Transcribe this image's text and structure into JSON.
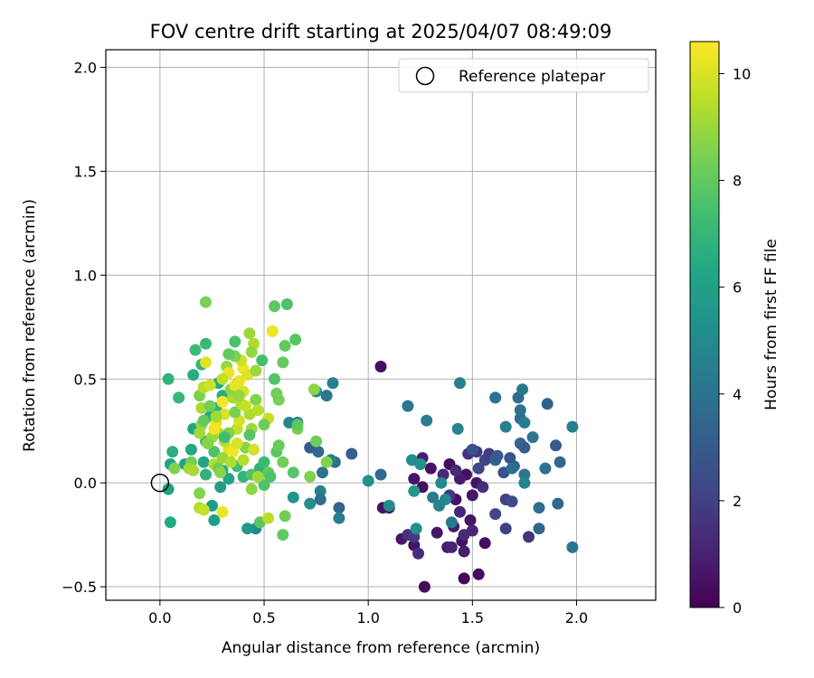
{
  "chart_data": {
    "type": "scatter",
    "title": "FOV centre drift starting at 2025/04/07 08:49:09",
    "xlabel": "Angular distance from reference (arcmin)",
    "ylabel": "Rotation from reference (arcmin)",
    "xlim": [
      -0.26,
      2.38
    ],
    "ylim": [
      -0.565,
      2.085
    ],
    "xticks": [
      0.0,
      0.5,
      1.0,
      1.5,
      2.0
    ],
    "xtick_labels": [
      "0.0",
      "0.5",
      "1.0",
      "1.5",
      "2.0"
    ],
    "yticks": [
      -0.5,
      0.0,
      0.5,
      1.0,
      1.5,
      2.0
    ],
    "ytick_labels": [
      "−0.5",
      "0.0",
      "0.5",
      "1.0",
      "1.5",
      "2.0"
    ],
    "grid": true,
    "legend": {
      "placement": "top-right",
      "entries": [
        "Reference platepar"
      ]
    },
    "reference_point": {
      "x": 0.0,
      "y": 0.0
    },
    "colorbar": {
      "label": "Hours from first FF file",
      "range": [
        0,
        10.6
      ],
      "ticks": [
        0,
        2,
        4,
        6,
        8,
        10
      ],
      "tick_labels": [
        "0",
        "2",
        "4",
        "6",
        "8",
        "10"
      ],
      "colormap": "viridis"
    },
    "points": [
      [
        1.06,
        0.56,
        0.4
      ],
      [
        1.16,
        -0.27,
        0.6
      ],
      [
        1.22,
        -0.3,
        0.5
      ],
      [
        1.27,
        -0.5,
        0.3
      ],
      [
        1.33,
        -0.24,
        0.7
      ],
      [
        1.38,
        -0.31,
        0.8
      ],
      [
        1.45,
        -0.28,
        0.5
      ],
      [
        1.46,
        -0.46,
        0.2
      ],
      [
        1.53,
        -0.44,
        0.3
      ],
      [
        1.56,
        -0.29,
        0.4
      ],
      [
        1.49,
        -0.18,
        0.6
      ],
      [
        1.46,
        -0.33,
        0.9
      ],
      [
        1.42,
        -0.08,
        0.5
      ],
      [
        1.39,
        0.09,
        0.3
      ],
      [
        1.47,
        0.04,
        0.4
      ],
      [
        1.52,
        0.0,
        0.6
      ],
      [
        1.5,
        -0.06,
        0.7
      ],
      [
        1.44,
        0.02,
        0.8
      ],
      [
        1.3,
        0.07,
        0.5
      ],
      [
        1.26,
        -0.02,
        0.4
      ],
      [
        1.22,
        0.02,
        0.6
      ],
      [
        1.26,
        0.12,
        0.9
      ],
      [
        1.1,
        -0.12,
        0.7
      ],
      [
        1.07,
        -0.12,
        0.5
      ],
      [
        1.41,
        -0.21,
        0.8
      ],
      [
        1.4,
        -0.31,
        1.0
      ],
      [
        1.36,
        0.04,
        1.2
      ],
      [
        1.42,
        0.06,
        1.3
      ],
      [
        1.48,
        0.14,
        1.5
      ],
      [
        1.44,
        -0.14,
        1.2
      ],
      [
        1.39,
        -0.06,
        1.8
      ],
      [
        1.55,
        -0.02,
        1.4
      ],
      [
        1.61,
        -0.15,
        2.2
      ],
      [
        1.66,
        -0.08,
        2.0
      ],
      [
        1.77,
        -0.26,
        1.6
      ],
      [
        1.66,
        -0.22,
        2.0
      ],
      [
        1.5,
        -0.23,
        1.1
      ],
      [
        1.46,
        -0.25,
        1.3
      ],
      [
        1.19,
        -0.25,
        1.6
      ],
      [
        1.22,
        -0.26,
        1.8
      ],
      [
        1.24,
        -0.34,
        1.4
      ],
      [
        1.52,
        0.15,
        1.7
      ],
      [
        1.56,
        0.11,
        2.1
      ],
      [
        1.5,
        0.16,
        2.6
      ],
      [
        1.58,
        0.14,
        1.9
      ],
      [
        1.53,
        0.07,
        2.3
      ],
      [
        1.61,
        0.11,
        3.2
      ],
      [
        1.65,
        0.05,
        2.6
      ],
      [
        1.7,
        0.08,
        3.4
      ],
      [
        1.68,
        0.12,
        2.8
      ],
      [
        1.69,
        0.07,
        3.8
      ],
      [
        1.73,
        0.19,
        3.5
      ],
      [
        1.75,
        0.17,
        3.1
      ],
      [
        1.79,
        0.22,
        4.2
      ],
      [
        1.73,
        0.31,
        3.6
      ],
      [
        1.75,
        0.29,
        4.4
      ],
      [
        1.73,
        0.35,
        3.9
      ],
      [
        1.66,
        0.27,
        4.6
      ],
      [
        1.61,
        0.41,
        4.0
      ],
      [
        1.72,
        0.41,
        3.7
      ],
      [
        1.74,
        0.45,
        4.3
      ],
      [
        1.86,
        0.38,
        3.3
      ],
      [
        1.9,
        0.18,
        3.0
      ],
      [
        1.92,
        0.1,
        3.5
      ],
      [
        1.85,
        0.07,
        4.0
      ],
      [
        1.98,
        0.27,
        4.5
      ],
      [
        1.98,
        -0.31,
        4.1
      ],
      [
        1.91,
        -0.1,
        3.6
      ],
      [
        1.82,
        -0.12,
        3.9
      ],
      [
        1.82,
        -0.22,
        3.4
      ],
      [
        1.75,
        0.04,
        4.2
      ],
      [
        1.75,
        0.0,
        4.7
      ],
      [
        1.69,
        -0.09,
        2.4
      ],
      [
        1.62,
        0.13,
        3.0
      ],
      [
        1.44,
        0.48,
        4.6
      ],
      [
        1.43,
        0.26,
        4.8
      ],
      [
        1.28,
        0.3,
        4.5
      ],
      [
        1.19,
        0.37,
        4.2
      ],
      [
        1.31,
        -0.07,
        4.4
      ],
      [
        1.35,
        0.0,
        4.9
      ],
      [
        1.37,
        -0.08,
        5.0
      ],
      [
        1.34,
        -0.11,
        4.7
      ],
      [
        1.4,
        -0.19,
        4.3
      ],
      [
        1.23,
        -0.22,
        5.2
      ],
      [
        1.25,
        0.09,
        5.4
      ],
      [
        1.21,
        0.11,
        5.1
      ],
      [
        1.22,
        -0.04,
        5.6
      ],
      [
        1.1,
        -0.11,
        5.0
      ],
      [
        1.0,
        0.01,
        5.3
      ],
      [
        1.06,
        0.04,
        3.6
      ],
      [
        0.92,
        0.14,
        3.2
      ],
      [
        0.84,
        0.1,
        3.8
      ],
      [
        0.8,
        0.42,
        4.2
      ],
      [
        0.83,
        0.48,
        4.6
      ],
      [
        0.75,
        0.44,
        5.0
      ],
      [
        0.62,
        0.29,
        4.8
      ],
      [
        0.66,
        0.29,
        4.3
      ],
      [
        0.72,
        0.17,
        3.0
      ],
      [
        0.76,
        0.15,
        3.6
      ],
      [
        0.82,
        0.11,
        4.4
      ],
      [
        0.78,
        0.05,
        4.0
      ],
      [
        0.77,
        -0.04,
        4.7
      ],
      [
        0.77,
        -0.08,
        3.9
      ],
      [
        0.86,
        -0.12,
        3.4
      ],
      [
        0.86,
        -0.17,
        4.5
      ],
      [
        0.72,
        -0.1,
        5.2
      ],
      [
        0.64,
        -0.07,
        5.5
      ],
      [
        0.46,
        -0.22,
        5.0
      ],
      [
        0.42,
        -0.22,
        5.7
      ],
      [
        0.26,
        -0.18,
        6.0
      ],
      [
        0.25,
        -0.11,
        5.8
      ],
      [
        0.05,
        -0.19,
        6.4
      ],
      [
        0.04,
        -0.03,
        6.0
      ],
      [
        0.05,
        0.09,
        6.2
      ],
      [
        0.06,
        0.15,
        6.6
      ],
      [
        0.12,
        0.09,
        6.0
      ],
      [
        0.15,
        0.16,
        6.4
      ],
      [
        0.16,
        0.26,
        6.2
      ],
      [
        0.04,
        0.5,
        6.8
      ],
      [
        0.09,
        0.41,
        7.0
      ],
      [
        0.16,
        0.52,
        6.6
      ],
      [
        0.2,
        0.57,
        6.9
      ],
      [
        0.17,
        0.64,
        7.2
      ],
      [
        0.22,
        0.67,
        7.1
      ],
      [
        0.36,
        0.68,
        7.5
      ],
      [
        0.28,
        0.48,
        6.4
      ],
      [
        0.3,
        0.42,
        6.6
      ],
      [
        0.27,
        0.36,
        6.8
      ],
      [
        0.24,
        0.32,
        6.5
      ],
      [
        0.22,
        0.2,
        7.3
      ],
      [
        0.26,
        0.15,
        7.6
      ],
      [
        0.21,
        0.1,
        6.1
      ],
      [
        0.22,
        0.04,
        6.8
      ],
      [
        0.3,
        0.06,
        6.3
      ],
      [
        0.29,
        -0.02,
        5.9
      ],
      [
        0.33,
        0.02,
        6.2
      ],
      [
        0.37,
        0.08,
        7.4
      ],
      [
        0.4,
        0.03,
        6.9
      ],
      [
        0.44,
        0.04,
        7.7
      ],
      [
        0.48,
        0.07,
        6.7
      ],
      [
        0.5,
        0.1,
        7.2
      ],
      [
        0.52,
        0.05,
        8.0
      ],
      [
        0.53,
        0.03,
        7.6
      ],
      [
        0.56,
        0.15,
        7.9
      ],
      [
        0.57,
        0.18,
        8.1
      ],
      [
        0.59,
        0.1,
        8.3
      ],
      [
        0.64,
        0.05,
        7.8
      ],
      [
        0.66,
        0.26,
        8.4
      ],
      [
        0.66,
        0.28,
        7.9
      ],
      [
        0.72,
        0.03,
        8.5
      ],
      [
        0.75,
        0.2,
        8.2
      ],
      [
        0.8,
        0.1,
        8.6
      ],
      [
        0.74,
        0.45,
        8.8
      ],
      [
        0.65,
        0.69,
        7.8
      ],
      [
        0.59,
        0.58,
        8.1
      ],
      [
        0.6,
        0.66,
        8.0
      ],
      [
        0.55,
        0.5,
        7.7
      ],
      [
        0.57,
        0.4,
        8.4
      ],
      [
        0.55,
        0.85,
        7.9
      ],
      [
        0.61,
        0.86,
        7.6
      ],
      [
        0.22,
        0.87,
        8.5
      ],
      [
        0.43,
        0.72,
        9.0
      ],
      [
        0.45,
        0.67,
        9.3
      ],
      [
        0.44,
        0.63,
        8.9
      ],
      [
        0.49,
        0.59,
        7.4
      ],
      [
        0.54,
        0.73,
        10.3
      ],
      [
        0.48,
        -0.19,
        7.9
      ],
      [
        0.52,
        -0.17,
        9.5
      ],
      [
        0.6,
        -0.16,
        8.3
      ],
      [
        0.59,
        -0.25,
        8.0
      ],
      [
        0.44,
        -0.03,
        8.8
      ],
      [
        0.5,
        -0.01,
        7.6
      ],
      [
        0.47,
        0.03,
        9.1
      ],
      [
        0.4,
        0.11,
        9.4
      ],
      [
        0.41,
        0.17,
        8.7
      ],
      [
        0.44,
        0.26,
        9.0
      ],
      [
        0.43,
        0.33,
        9.2
      ],
      [
        0.46,
        0.4,
        8.6
      ],
      [
        0.47,
        0.35,
        9.5
      ],
      [
        0.52,
        0.31,
        9.7
      ],
      [
        0.5,
        0.28,
        8.2
      ],
      [
        0.45,
        0.16,
        9.9
      ],
      [
        0.4,
        0.44,
        10.0
      ],
      [
        0.38,
        0.49,
        10.2
      ],
      [
        0.4,
        0.55,
        10.4
      ],
      [
        0.42,
        0.52,
        10.1
      ],
      [
        0.39,
        0.59,
        9.8
      ],
      [
        0.36,
        0.61,
        8.5
      ],
      [
        0.32,
        0.56,
        8.9
      ],
      [
        0.33,
        0.53,
        10.3
      ],
      [
        0.3,
        0.5,
        9.6
      ],
      [
        0.3,
        0.39,
        10.5
      ],
      [
        0.31,
        0.33,
        10.0
      ],
      [
        0.27,
        0.29,
        10.2
      ],
      [
        0.28,
        0.24,
        9.4
      ],
      [
        0.25,
        0.22,
        9.0
      ],
      [
        0.23,
        0.19,
        8.7
      ],
      [
        0.2,
        0.28,
        8.8
      ],
      [
        0.2,
        0.36,
        9.2
      ],
      [
        0.19,
        0.42,
        8.5
      ],
      [
        0.21,
        0.46,
        9.5
      ],
      [
        0.24,
        0.47,
        9.8
      ],
      [
        0.22,
        0.58,
        10.1
      ],
      [
        0.21,
        0.3,
        8.0
      ],
      [
        0.19,
        0.24,
        9.1
      ],
      [
        0.15,
        0.1,
        8.3
      ],
      [
        0.14,
        0.07,
        9.0
      ],
      [
        0.19,
        -0.05,
        8.6
      ],
      [
        0.19,
        -0.12,
        9.4
      ],
      [
        0.21,
        -0.13,
        9.7
      ],
      [
        0.3,
        -0.14,
        10.3
      ],
      [
        0.26,
        0.09,
        9.3
      ],
      [
        0.28,
        0.07,
        8.2
      ],
      [
        0.33,
        0.16,
        10.1
      ],
      [
        0.35,
        0.15,
        10.4
      ],
      [
        0.37,
        0.19,
        10.0
      ],
      [
        0.37,
        0.26,
        9.6
      ],
      [
        0.38,
        0.3,
        9.9
      ],
      [
        0.36,
        0.34,
        8.4
      ],
      [
        0.35,
        0.41,
        9.2
      ],
      [
        0.34,
        0.45,
        8.8
      ],
      [
        0.36,
        0.47,
        10.2
      ],
      [
        0.39,
        0.38,
        9.4
      ],
      [
        0.41,
        0.37,
        9.7
      ],
      [
        0.3,
        0.12,
        9.0
      ],
      [
        0.31,
        0.2,
        9.5
      ],
      [
        0.33,
        0.24,
        8.6
      ],
      [
        0.26,
        0.26,
        10.4
      ],
      [
        0.27,
        0.32,
        9.1
      ],
      [
        0.24,
        0.37,
        8.3
      ],
      [
        0.33,
        0.62,
        8.0
      ],
      [
        0.29,
        0.05,
        8.7
      ],
      [
        0.34,
        0.1,
        9.3
      ],
      [
        0.43,
        0.23,
        7.8
      ],
      [
        0.38,
        0.42,
        8.9
      ],
      [
        0.07,
        0.07,
        8.6
      ],
      [
        0.16,
        0.06,
        9.2
      ],
      [
        0.56,
        0.43,
        8.3
      ],
      [
        0.46,
        0.54,
        9.0
      ],
      [
        0.31,
        0.22,
        7.3
      ]
    ]
  }
}
